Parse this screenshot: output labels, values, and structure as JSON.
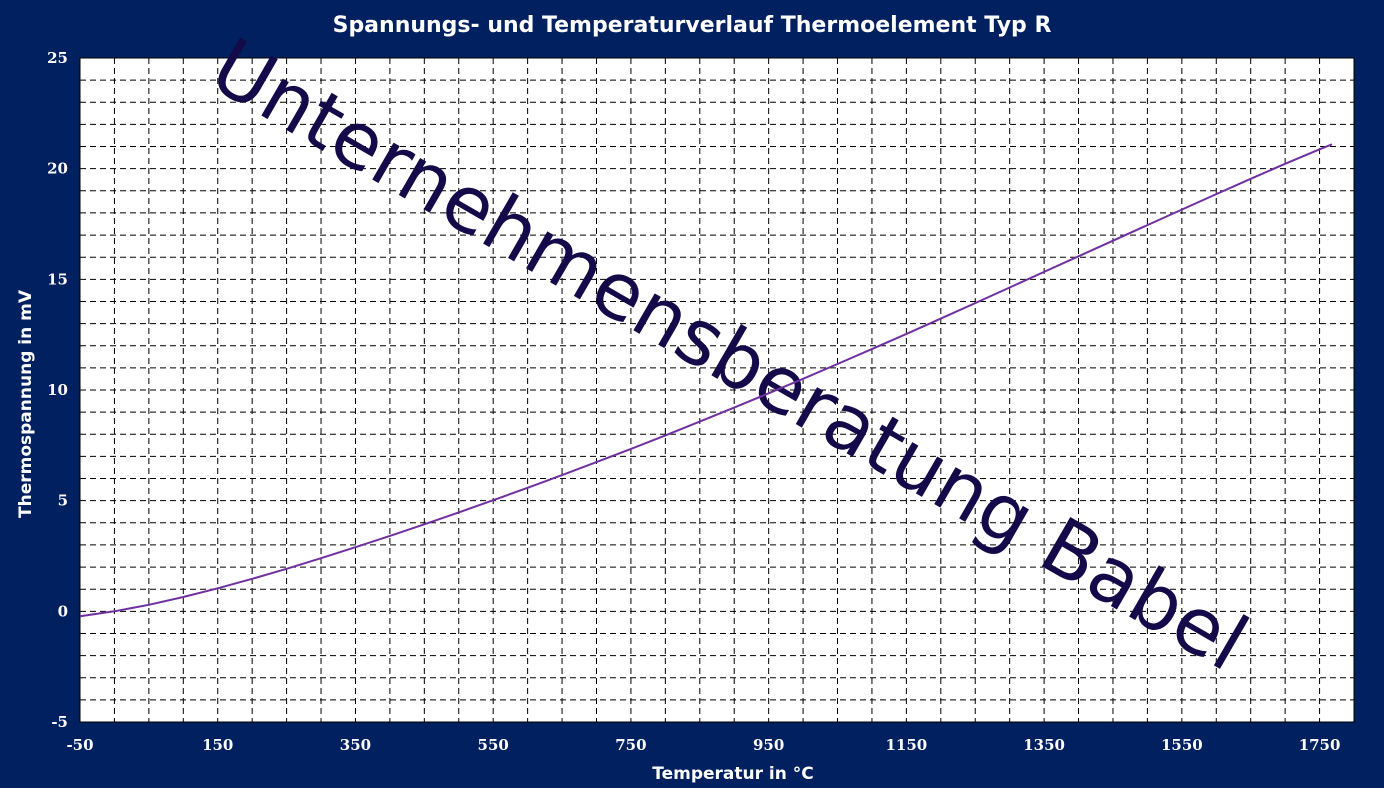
{
  "colors": {
    "background": "#002060",
    "plot_area": "#ffffff",
    "grid": "#000000",
    "series_line": "#7030a0",
    "text": "#ffffff",
    "watermark": "#140a4a"
  },
  "watermark": "Unternehmensberatung Babel",
  "chart_data": {
    "type": "line",
    "title": "Spannungs- und Temperaturverlauf Thermoelement Typ R",
    "xlabel": "Temperatur in °C",
    "ylabel": "Thermospannung in mV",
    "xlim": [
      -50,
      1800
    ],
    "ylim": [
      -5,
      25
    ],
    "grid": true,
    "legend": "none",
    "x_ticks": [
      -50,
      150,
      350,
      550,
      750,
      950,
      1150,
      1350,
      1550,
      1750
    ],
    "y_ticks": [
      -5,
      0,
      5,
      10,
      15,
      20,
      25
    ],
    "series": [
      {
        "x": [
          -50,
          0,
          50,
          100,
          150,
          200,
          250,
          300,
          350,
          400,
          450,
          500,
          550,
          600,
          650,
          700,
          750,
          800,
          850,
          900,
          950,
          1000,
          1050,
          1100,
          1150,
          1200,
          1250,
          1300,
          1350,
          1400,
          1450,
          1500,
          1550,
          1600,
          1650,
          1700,
          1750,
          1768
        ],
        "y": [
          -0.226,
          0.0,
          0.296,
          0.647,
          1.041,
          1.469,
          1.923,
          2.401,
          2.896,
          3.408,
          3.933,
          4.471,
          5.021,
          5.583,
          6.157,
          6.743,
          7.34,
          7.95,
          8.571,
          9.205,
          9.85,
          10.506,
          11.173,
          11.85,
          12.535,
          13.228,
          13.926,
          14.629,
          15.334,
          16.04,
          16.746,
          17.451,
          18.152,
          18.849,
          19.54,
          20.222,
          20.877,
          21.101
        ]
      }
    ]
  }
}
